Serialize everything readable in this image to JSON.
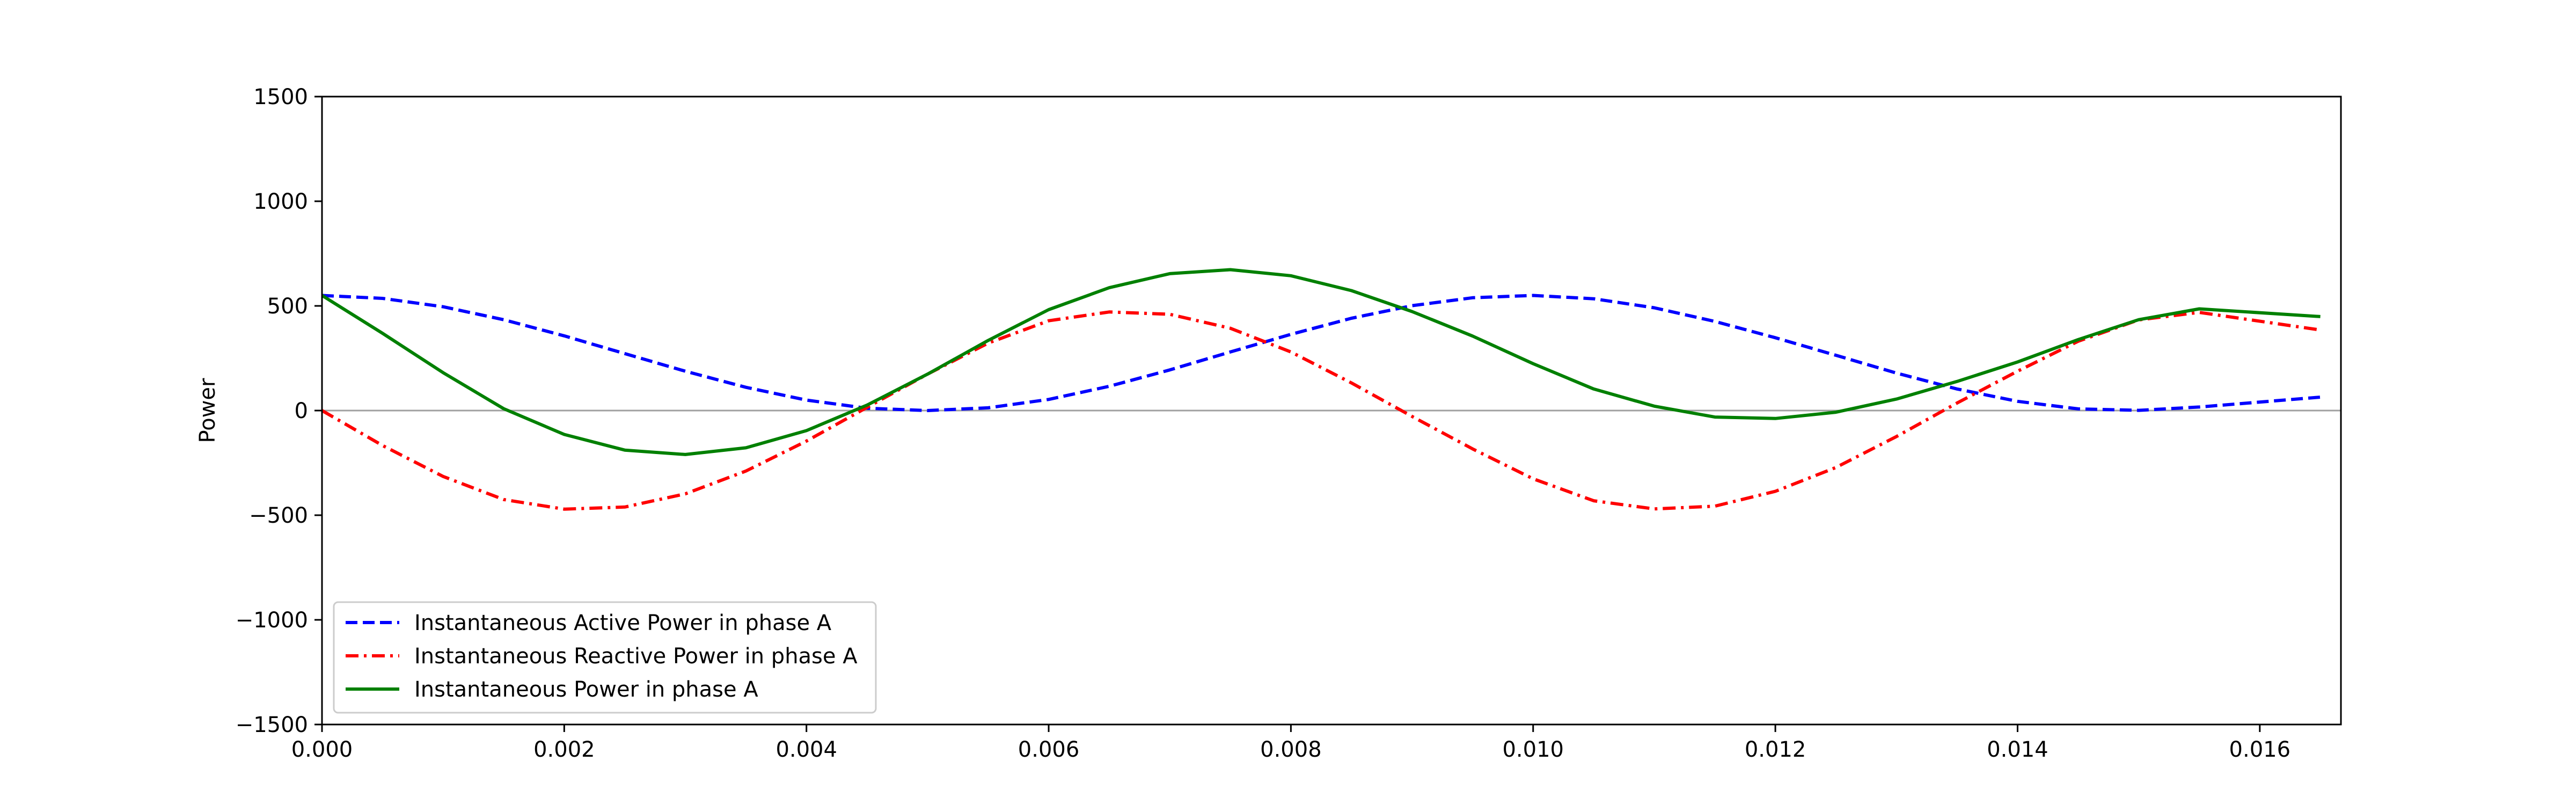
{
  "chart_data": {
    "type": "line",
    "title": "",
    "xlabel": "",
    "ylabel": "Power",
    "xlim": [
      0.0,
      0.01667
    ],
    "ylim": [
      -1500,
      1500
    ],
    "x_ticks": [
      0.0,
      0.002,
      0.004,
      0.006,
      0.008,
      0.01,
      0.012,
      0.014,
      0.016
    ],
    "x_tick_labels": [
      "0.000",
      "0.002",
      "0.004",
      "0.006",
      "0.008",
      "0.010",
      "0.012",
      "0.014",
      "0.016"
    ],
    "y_ticks": [
      -1500,
      -1000,
      -500,
      0,
      500,
      1000,
      1500
    ],
    "y_tick_labels": [
      "−1500",
      "−1000",
      "−500",
      "0",
      "500",
      "1000",
      "1500"
    ],
    "grid": false,
    "zero_line": true,
    "legend_position": "lower-left",
    "x": [
      0.0,
      0.0005,
      0.001,
      0.0015,
      0.002,
      0.0025,
      0.003,
      0.0035,
      0.004,
      0.0045,
      0.005,
      0.0055,
      0.006,
      0.0065,
      0.007,
      0.0075,
      0.008,
      0.0085,
      0.009,
      0.0095,
      0.01,
      0.0105,
      0.011,
      0.0115,
      0.012,
      0.0125,
      0.013,
      0.0135,
      0.014,
      0.0145,
      0.015,
      0.0155,
      0.0165
    ],
    "series": [
      {
        "name": "Instantaneous Active Power in phase A",
        "color": "#0000ff",
        "style": "dashed",
        "values": [
          550,
          536,
          496,
          434,
          357,
          272,
          188,
          111,
          50,
          11,
          0,
          13,
          53,
          116,
          194,
          280,
          364,
          441,
          501,
          539,
          550,
          534,
          491,
          426,
          348,
          264,
          179,
          103,
          44,
          8,
          1,
          17,
          64
        ]
      },
      {
        "name": "Instantaneous Reactive Power in phase A",
        "color": "#ff0000",
        "style": "dashdot",
        "values": [
          0,
          -167,
          -315,
          -425,
          -471,
          -461,
          -398,
          -289,
          -146,
          15,
          174,
          322,
          429,
          471,
          460,
          393,
          280,
          132,
          -28,
          -183,
          -326,
          -431,
          -470,
          -457,
          -386,
          -272,
          -124,
          36,
          188,
          331,
          433,
          469,
          385
        ]
      },
      {
        "name": "Instantaneous Power in phase A",
        "color": "#008000",
        "style": "solid",
        "values": [
          550,
          369,
          181,
          9,
          -114,
          -189,
          -210,
          -178,
          -96,
          26,
          174,
          335,
          482,
          587,
          654,
          673,
          644,
          573,
          473,
          356,
          224,
          103,
          21,
          -31,
          -38,
          -8,
          55,
          139,
          232,
          339,
          434,
          486,
          449
        ]
      }
    ]
  }
}
